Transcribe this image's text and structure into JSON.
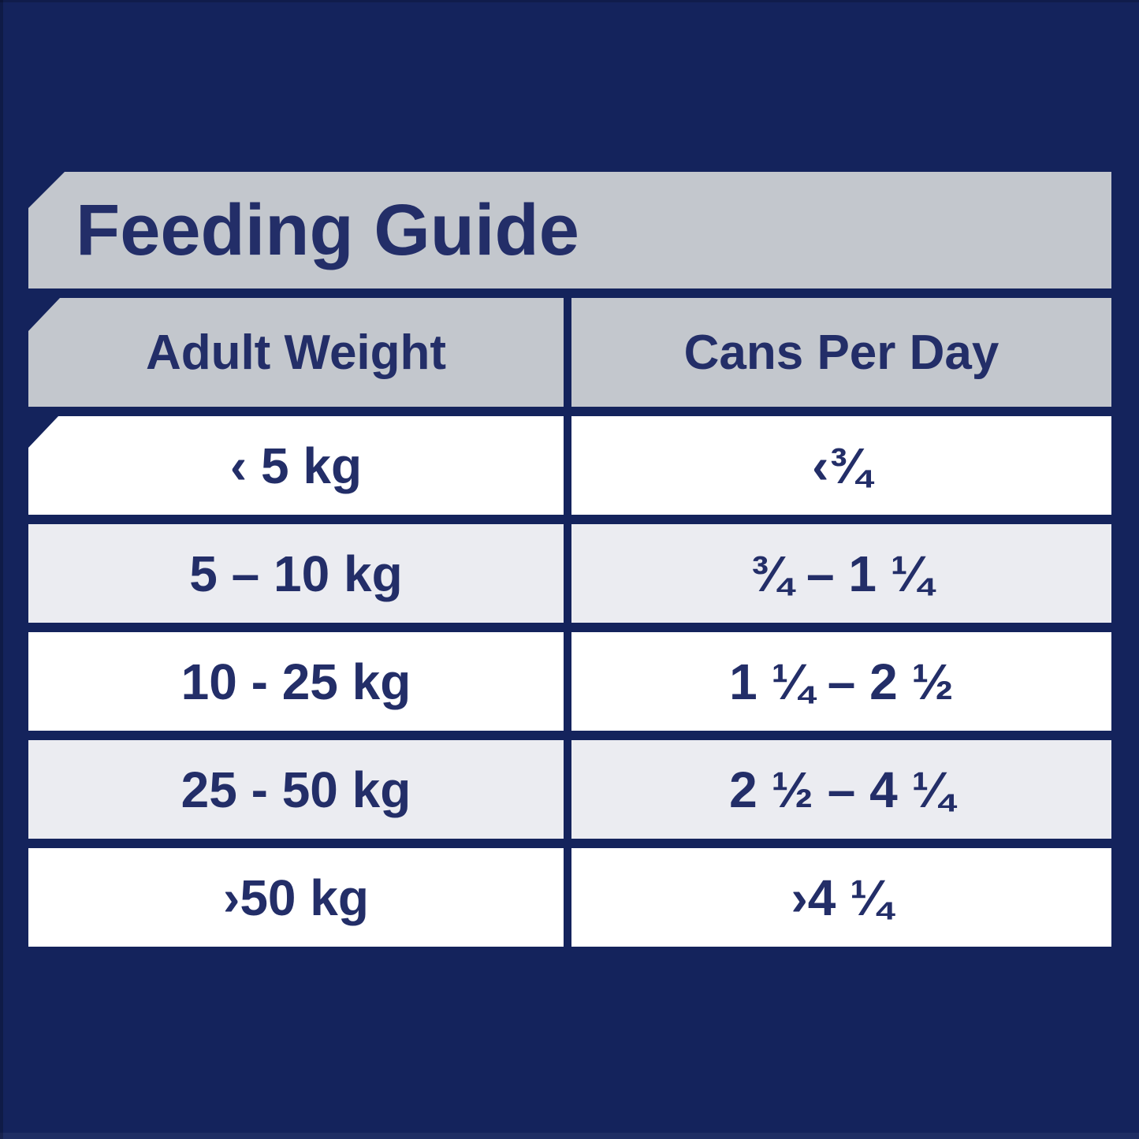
{
  "chart_data": {
    "type": "table",
    "title": "Feeding Guide",
    "columns": [
      "Adult Weight",
      "Cans Per Day"
    ],
    "rows": [
      [
        "‹ 5 kg",
        "‹¾"
      ],
      [
        "5 – 10 kg",
        "¾ – 1 ¼"
      ],
      [
        "10 - 25 kg",
        "1 ¼ – 2 ½"
      ],
      [
        "25 - 50 kg",
        "2 ½ – 4 ¼"
      ],
      [
        "›50 kg",
        "›4 ¼"
      ]
    ],
    "layout_hints": {
      "row_striping": "white / light-gray alternating",
      "chamfered_top_left_corners": [
        "title-band",
        "first-header-cell",
        "first-data-cell"
      ],
      "grid": "navy gaps between all bands and columns"
    }
  },
  "colors": {
    "background_navy": "#14235c",
    "text_navy": "#232e68",
    "band_gray": "#c3c7cd",
    "row_alt_gray": "#ebecf1",
    "row_white": "#ffffff"
  }
}
